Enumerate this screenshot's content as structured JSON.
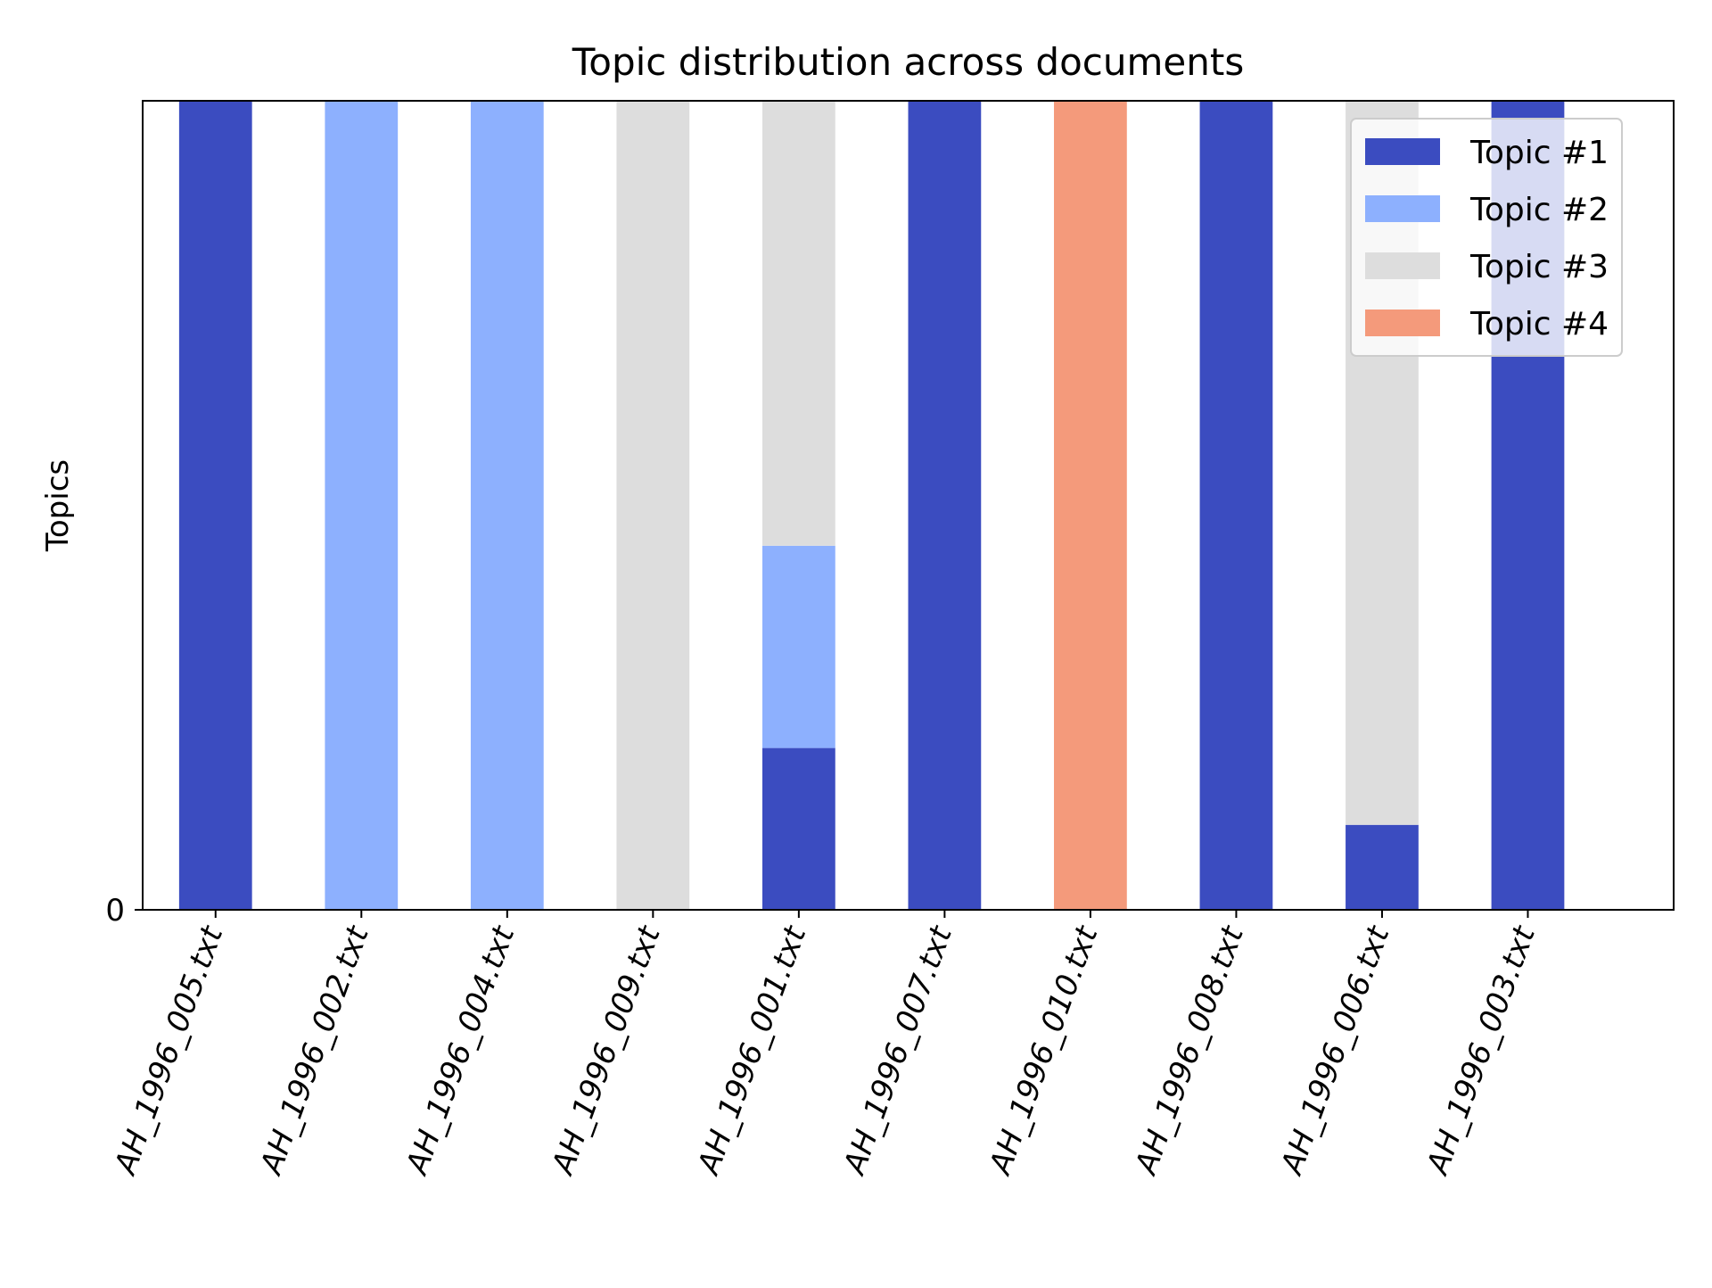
{
  "chart_data": {
    "type": "bar",
    "stacked": true,
    "title": "Topic distribution across documents",
    "xlabel": "",
    "ylabel": "Topics",
    "yticks": [
      0
    ],
    "ylim": [
      0,
      1
    ],
    "grid": false,
    "legend_position": "top-right",
    "categories": [
      "AH_1996_005.txt",
      "AH_1996_002.txt",
      "AH_1996_004.txt",
      "AH_1996_009.txt",
      "AH_1996_001.txt",
      "AH_1996_007.txt",
      "AH_1996_010.txt",
      "AH_1996_008.txt",
      "AH_1996_006.txt",
      "AH_1996_003.txt"
    ],
    "series": [
      {
        "name": "Topic #1",
        "color": "#3b4cc0",
        "values": [
          1,
          0,
          0,
          0,
          0.2,
          1,
          0,
          1,
          0.105,
          1
        ]
      },
      {
        "name": "Topic #2",
        "color": "#8db0fe",
        "values": [
          0,
          1,
          1,
          0,
          0.25,
          0,
          0,
          0,
          0,
          0
        ]
      },
      {
        "name": "Topic #3",
        "color": "#dddddd",
        "values": [
          0,
          0,
          0,
          1,
          0.55,
          0,
          0,
          0,
          0.895,
          0
        ]
      },
      {
        "name": "Topic #4",
        "color": "#f49a7b",
        "values": [
          0,
          0,
          0,
          0,
          0,
          0,
          1,
          0,
          0,
          0
        ]
      }
    ]
  }
}
